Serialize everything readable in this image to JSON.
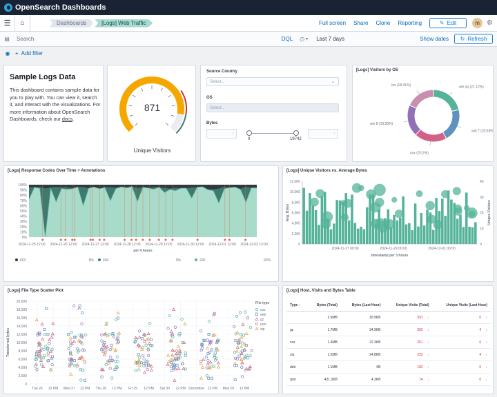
{
  "brand": "OpenSearch Dashboards",
  "breadcrumbs": [
    "Dashboards",
    "[Logs] Web Traffic"
  ],
  "nav": {
    "full_screen": "Full screen",
    "share": "Share",
    "clone": "Clone",
    "reporting": "Reporting",
    "edit": "Edit",
    "avatar": "m"
  },
  "search": {
    "placeholder": "Search",
    "dql": "DQL",
    "range": "Last 7 days",
    "show_dates": "Show dates",
    "refresh": "Refresh"
  },
  "add_filter": "Add filter",
  "intro": {
    "title": "Sample Logs Data",
    "text_before_link": "This dashboard contains sample data for you to play with. You can view it, search it, and interact with the visualizations. For more information about OpenSearch Dashboards, check our ",
    "link": "docs",
    "text_after_link": "."
  },
  "gauge": {
    "value": "871",
    "value_num": 871,
    "max": 1000,
    "label": "Unique Visitors"
  },
  "controls": {
    "source_country_label": "Source Country",
    "source_country_placeholder": "Select...",
    "os_label": "OS",
    "os_placeholder": "Select...",
    "bytes_label": "Bytes",
    "bytes_min": "0",
    "bytes_max": "19742"
  },
  "os_chart": {
    "title": "[Logs] Visitors by OS",
    "chart_data": {
      "type": "pie",
      "donut": true,
      "slices": [
        {
          "label": "win xp (21.12%)",
          "value": 21.12,
          "color": "#54b399"
        },
        {
          "label": "win 7 (20.69%)",
          "value": 20.69,
          "color": "#6092c0"
        },
        {
          "label": "osx (20.2%)",
          "value": 20.2,
          "color": "#d36086"
        },
        {
          "label": "win 8 (19.58%)",
          "value": 19.58,
          "color": "#9170b8"
        },
        {
          "label": "ios (18.41%)",
          "value": 18.41,
          "color": "#ca8eae"
        }
      ]
    }
  },
  "response_chart": {
    "title": "[Logs] Response Codes Over Time + Annotations",
    "xlabel": "per 4 hours",
    "y_ticks": [
      "100%",
      "90%",
      "80%",
      "70%",
      "60%",
      "50%",
      "40%",
      "30%",
      "20%",
      "10%",
      "0%"
    ],
    "x_ticks": [
      "2024-11-25 12:00",
      "2024-11-26 12:00",
      "2024-11-27 12:00",
      "2024-11-28 12:00",
      "2024-11-29 12:00",
      "2024-11-30 12:00",
      "2024-12-01 12:00",
      "2024-12-02 12:00"
    ],
    "legend": [
      {
        "label": "503",
        "pct": "8%",
        "color": "#343741"
      },
      {
        "label": "404",
        "pct": "0%",
        "color": "#3f7a6f"
      },
      {
        "label": "200",
        "pct": "92%",
        "color": "#54b399"
      }
    ]
  },
  "visitors_chart": {
    "title": "[Logs] Unique Visitors vs. Average Bytes",
    "ylabel_left": "Avg. Bytes",
    "ylabel_right": "Unique Visitors",
    "xlabel": "timestamp per 3 hours",
    "y_left_ticks": [
      "12,000",
      "10,000",
      "8,000",
      "6,000",
      "4,000",
      "2,000",
      "0"
    ],
    "y_right_ticks": [
      "40",
      "30",
      "20",
      "10",
      "0"
    ],
    "x_ticks": [
      "2024-11-27 00:00",
      "2024-11-29 00:00",
      "2024-12-01 00:00"
    ]
  },
  "scatter_chart": {
    "title": "[Logs] File Type Scatter Plot",
    "ylabel": "Transferred bytes",
    "y_ticks": [
      "20,000",
      "18,000",
      "16,000",
      "14,000",
      "12,000",
      "10,000",
      "8,000",
      "6,000",
      "4,000",
      "2,000",
      "0"
    ],
    "x_ticks": [
      "Tue 26",
      "12 PM",
      "Wed 27",
      "12 PM",
      "Thu 28",
      "12 PM",
      "Fri 29",
      "12 PM",
      "Sat 30",
      "12 PM",
      "December",
      "12 PM",
      "Mon 02",
      "12 PM"
    ],
    "legend_title": "File type",
    "legend": [
      {
        "label": "css",
        "symbol": "circle",
        "color": "#54b399"
      },
      {
        "label": "deb",
        "symbol": "square",
        "color": "#6092c0"
      },
      {
        "label": "gz",
        "symbol": "triangle",
        "color": "#d36086"
      },
      {
        "label": "rpm",
        "symbol": "circle",
        "color": "#9170b8"
      },
      {
        "label": "zip",
        "symbol": "triangle",
        "color": "#e7a44a"
      }
    ]
  },
  "table": {
    "title": "[Logs] Host, Visits and Bytes Table",
    "headers": [
      "Type ↑",
      "Bytes (Total)",
      "Bytes (Last Hour)",
      "Unique Visits (Total)",
      "Unique Visits (Last Hour)"
    ],
    "rows": [
      {
        "type": "",
        "bytes_total": "2.9MB",
        "bytes_last": "18.9KB",
        "visits_total": "591",
        "visits_last": "0"
      },
      {
        "type": "gz",
        "bytes_total": "1.7MB",
        "bytes_last": "34.9KB",
        "visits_total": "302",
        "visits_last": "4"
      },
      {
        "type": "css",
        "bytes_total": "1.4MB",
        "bytes_last": "22.3KB",
        "visits_total": "261",
        "visits_last": "0"
      },
      {
        "type": "zip",
        "bytes_total": "1.2MB",
        "bytes_last": "24.8KB",
        "visits_total": "232",
        "visits_last": "4"
      },
      {
        "type": "deb",
        "bytes_total": "1.1MB",
        "bytes_last": "0B",
        "visits_total": "182",
        "visits_last": "0"
      },
      {
        "type": "rpm",
        "bytes_total": "421.3KB",
        "bytes_last": "4.3KB",
        "visits_total": "74",
        "visits_last": "0"
      }
    ]
  }
}
